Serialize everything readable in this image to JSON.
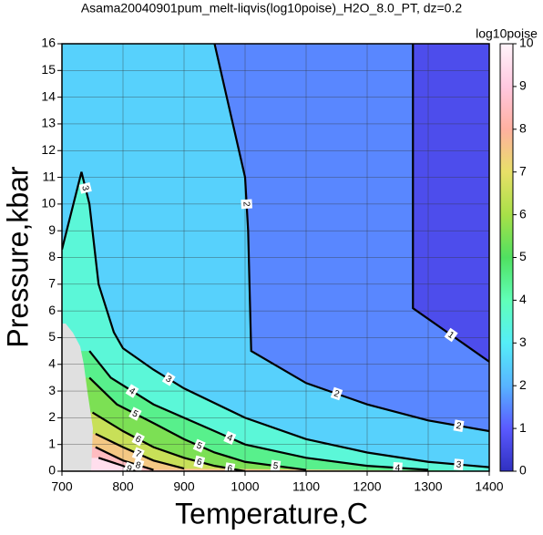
{
  "chart_data": {
    "type": "contour",
    "title": "Asama20040901pum_melt-liqvis(log10poise)_H2O_8.0_PT, dz=0.2",
    "x_label": "Temperature,C",
    "y_label": "Pressure,kbar",
    "xlim": [
      700,
      1400
    ],
    "ylim": [
      0,
      16
    ],
    "xticks": [
      700,
      800,
      900,
      1000,
      1100,
      1200,
      1300,
      1400
    ],
    "yticks": [
      0,
      1,
      2,
      3,
      4,
      5,
      6,
      7,
      8,
      9,
      10,
      11,
      12,
      13,
      14,
      15,
      16
    ],
    "grid": true,
    "contours": [
      {
        "level": 1,
        "x": [
          1275,
          1275,
          1400
        ],
        "y": [
          16,
          6.1,
          4.1
        ]
      },
      {
        "level": 2,
        "x": [
          950,
          1000,
          1005,
          1010,
          1100,
          1200,
          1300,
          1400
        ],
        "y": [
          16,
          11,
          9,
          4.5,
          3.3,
          2.5,
          1.9,
          1.5
        ]
      },
      {
        "level": 3,
        "x": [
          700,
          732,
          745,
          760,
          785,
          800,
          850,
          900,
          1000,
          1100,
          1200,
          1300,
          1400
        ],
        "y": [
          8.3,
          11.2,
          10,
          7,
          5.2,
          4.6,
          3.8,
          3.1,
          2.0,
          1.2,
          0.7,
          0.35,
          0.15
        ]
      },
      {
        "level": 4,
        "x": [
          745,
          780,
          850,
          900,
          950,
          1000,
          1100,
          1200,
          1300
        ],
        "y": [
          4.5,
          3.5,
          2.5,
          2,
          1.5,
          1.0,
          0.5,
          0.2,
          0.05
        ]
      },
      {
        "level": 5,
        "x": [
          745,
          790,
          850,
          900,
          950,
          1000,
          1100
        ],
        "y": [
          3.5,
          2.5,
          1.8,
          1.2,
          0.7,
          0.35,
          0.05
        ]
      },
      {
        "level": 6,
        "x": [
          750,
          800,
          850,
          900,
          950,
          1000
        ],
        "y": [
          2.2,
          1.5,
          0.9,
          0.5,
          0.2,
          0
        ]
      },
      {
        "level": 7,
        "x": [
          755,
          800,
          850,
          900
        ],
        "y": [
          1.4,
          0.9,
          0.4,
          0.1
        ]
      },
      {
        "level": 8,
        "x": [
          755,
          800,
          850
        ],
        "y": [
          0.9,
          0.4,
          0.05
        ]
      },
      {
        "level": 9,
        "x": [
          760,
          800,
          820
        ],
        "y": [
          0.5,
          0.2,
          0
        ]
      }
    ],
    "colorbar": {
      "label": "log10poise",
      "lim": [
        0,
        10
      ],
      "ticks": [
        0,
        1,
        2,
        3,
        4,
        5,
        6,
        7,
        8,
        9,
        10
      ],
      "colors": [
        "#3030c0",
        "#5a5aff",
        "#58b4ff",
        "#55eef8",
        "#60ffb8",
        "#50e060",
        "#a8e048",
        "#e8e068",
        "#ffb0a0",
        "#ffc8e0",
        "#fff4fa"
      ]
    }
  }
}
